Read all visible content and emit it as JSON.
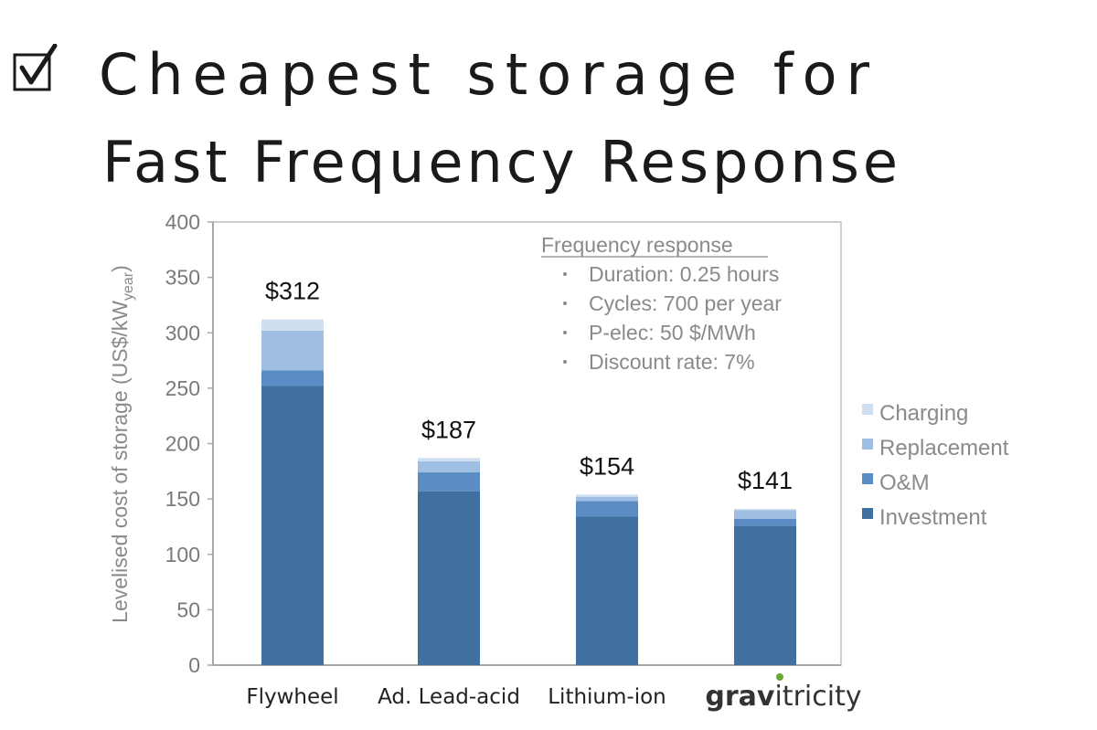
{
  "title": {
    "line1": "Cheapest storage for",
    "line2": "Fast Frequency Response"
  },
  "colors": {
    "investment": "#40709f",
    "om": "#5b8dc4",
    "replacement": "#9ebfe2",
    "charging": "#cfdff0",
    "axis": "#a8a8a8",
    "plot_border": "#bdbdbd",
    "gravitricity_dot": "#6aa834"
  },
  "chart_data": {
    "type": "bar",
    "stacked": true,
    "ylabel_main": "Levelised cost of storage (US$/kW",
    "ylabel_sub": "year",
    "ylabel_end": ")",
    "ylim": [
      0,
      400
    ],
    "yticks": [
      0,
      50,
      100,
      150,
      200,
      250,
      300,
      350,
      400
    ],
    "categories": [
      "Flywheel",
      "Ad. Lead-acid",
      "Lithium-ion",
      "gravitricity"
    ],
    "totals_labels": [
      "$312",
      "$187",
      "$154",
      "$141"
    ],
    "series": [
      {
        "name": "Investment",
        "key": "investment",
        "values": [
          252,
          157,
          134,
          126
        ]
      },
      {
        "name": "O&M",
        "key": "om",
        "values": [
          14,
          17,
          14,
          6
        ]
      },
      {
        "name": "Replacement",
        "key": "replacement",
        "values": [
          36,
          10,
          4,
          8
        ]
      },
      {
        "name": "Charging",
        "key": "charging",
        "values": [
          10,
          3,
          2,
          1
        ]
      }
    ],
    "legend_order": [
      "Charging",
      "Replacement",
      "O&M",
      "Investment"
    ],
    "legend_position": "right",
    "annotation": {
      "heading": "Frequency response",
      "items": [
        "Duration: 0.25 hours",
        "Cycles: 700 per year",
        "P-elec: 50 $/MWh",
        "Discount rate: 7%"
      ]
    },
    "grid": false
  }
}
